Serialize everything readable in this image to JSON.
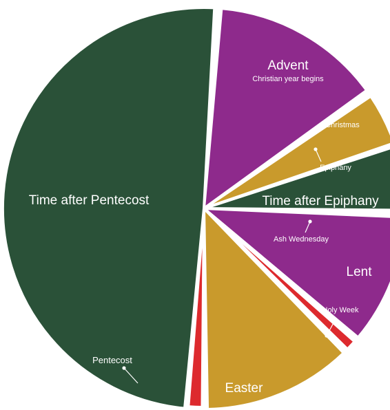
{
  "colors": {
    "green": "#2a5138",
    "purple": "#8e2a8c",
    "gold": "#c99a2c",
    "red": "#dd2a2e",
    "separator": "#ffffff"
  },
  "labels": {
    "advent": "Advent",
    "advent_sub": "Christian year begins",
    "christmas": "Christmas",
    "epiphany": "Epiphany",
    "time_after_epiphany": "Time after Epiphany",
    "ash_wednesday": "Ash Wednesday",
    "lent": "Lent",
    "holy_week": "Holy Week",
    "easter": "Easter",
    "pentecost": "Pentecost",
    "time_after_pentecost": "Time after Pentecost"
  },
  "segments": [
    {
      "key": "advent",
      "color": "purple"
    },
    {
      "key": "christmas",
      "color": "gold"
    },
    {
      "key": "time_after_epiphany",
      "color": "green"
    },
    {
      "key": "lent",
      "color": "purple"
    },
    {
      "key": "holy_week",
      "color": "red"
    },
    {
      "key": "easter",
      "color": "gold"
    },
    {
      "key": "pentecost",
      "color": "red"
    },
    {
      "key": "time_after_pentecost",
      "color": "green"
    }
  ]
}
